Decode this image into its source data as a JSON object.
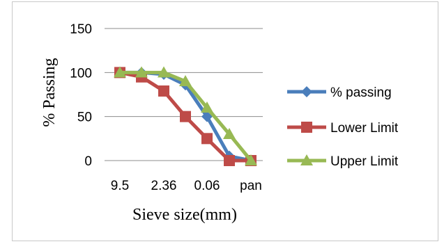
{
  "chart_data": {
    "type": "line",
    "xlabel": "Sieve size(mm)",
    "ylabel": "% Passing",
    "ylim": [
      0,
      150
    ],
    "yticks": [
      0,
      50,
      100,
      150
    ],
    "x_tick_labels": [
      "9.5",
      "2.36",
      "0.06",
      "pan"
    ],
    "x_positions": 7,
    "grid": "horizontal",
    "legend_position": "right",
    "series": [
      {
        "name": "% passing",
        "color": "#4a7ebb",
        "marker": "diamond",
        "values": [
          100,
          100,
          98,
          86,
          50,
          5,
          0
        ]
      },
      {
        "name": "Lower  Limit",
        "color": "#be4b48",
        "marker": "square",
        "values": [
          100,
          95,
          79,
          50,
          25,
          0,
          0
        ]
      },
      {
        "name": "Upper  Limit",
        "color": "#98b954",
        "marker": "triangle",
        "values": [
          100,
          100,
          100,
          90,
          60,
          30,
          0
        ]
      }
    ]
  }
}
